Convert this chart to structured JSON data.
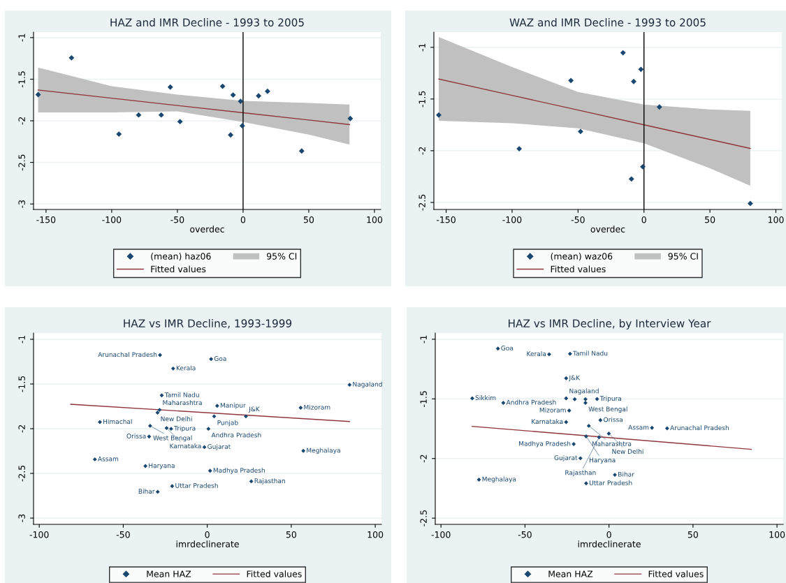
{
  "chart_data": [
    {
      "type": "scatter",
      "title": "HAZ and IMR Decline - 1993 to 2005",
      "xlabel": "overdec",
      "xlim": [
        -159.5,
        104.8
      ],
      "xticks": [
        -150,
        -100,
        -50,
        0,
        50,
        100
      ],
      "ylim": [
        -3.066,
        -0.934
      ],
      "yticks": [
        -3,
        -2.5,
        -2,
        -1.5,
        -1
      ],
      "grid": "y",
      "legend": "bottom",
      "annotations": [
        "95% CI"
      ],
      "ref_lines": [
        {
          "axis": "x",
          "value": 0,
          "color": "#000000"
        }
      ],
      "series": [
        {
          "name": "(mean) haz06",
          "marker": "diamond",
          "color": "#1a476f",
          "x": [
            -156,
            -130.6,
            -94.5,
            -79.5,
            -62.3,
            -55.4,
            -48,
            -15.6,
            -7.6,
            -1.9,
            -0.6,
            -9.5,
            11.8,
            18.6,
            44.6,
            81.6
          ],
          "values": [
            -1.685,
            -1.243,
            -2.16,
            -1.93,
            -1.93,
            -1.595,
            -2.01,
            -1.585,
            -1.69,
            -1.766,
            -2.06,
            -2.17,
            -1.7,
            -1.645,
            -2.363,
            -1.973
          ]
        },
        {
          "name": "Fitted values",
          "type": "line",
          "marker": "none",
          "color": "#90353b",
          "x": [
            -156,
            -100,
            -50,
            0,
            50,
            81
          ],
          "values": [
            -1.63,
            -1.728,
            -1.816,
            -1.903,
            -1.991,
            -2.045
          ],
          "lower": [
            -1.9,
            -1.9,
            -1.886,
            -2.015,
            -2.165,
            -2.285
          ],
          "upper": [
            -1.36,
            -1.585,
            -1.685,
            -1.76,
            -1.787,
            -1.805
          ]
        }
      ]
    },
    {
      "type": "scatter",
      "title": "WAZ and IMR Decline - 1993 to 2005",
      "xlabel": "overdec",
      "xlim": [
        -159.3,
        104.5
      ],
      "xticks": [
        -150,
        -100,
        -50,
        0,
        50,
        100
      ],
      "ylim": [
        -2.568,
        -0.853
      ],
      "yticks": [
        -2.5,
        -2,
        -1.5,
        -1
      ],
      "grid": "y",
      "legend": "bottom",
      "annotations": [
        "95% CI"
      ],
      "ref_lines": [
        {
          "axis": "x",
          "value": 0,
          "color": "#000000"
        }
      ],
      "series": [
        {
          "name": "(mean) waz06",
          "marker": "diamond",
          "color": "#1a476f",
          "x": [
            -155.6,
            -94.6,
            -55.4,
            -48.1,
            -15.9,
            -7.8,
            -2.3,
            -0.9,
            -9.5,
            11.7,
            80.6
          ],
          "values": [
            -1.655,
            -1.981,
            -1.321,
            -1.814,
            -1.053,
            -1.331,
            -1.213,
            -2.155,
            -2.273,
            -1.577,
            -2.51
          ]
        },
        {
          "name": "Fitted values",
          "type": "line",
          "marker": "none",
          "color": "#90353b",
          "x": [
            -155.6,
            -100,
            -50,
            0,
            50,
            80.6
          ],
          "values": [
            -1.307,
            -1.465,
            -1.607,
            -1.749,
            -1.891,
            -1.978
          ],
          "lower": [
            -1.71,
            -1.734,
            -1.783,
            -1.928,
            -2.17,
            -2.338
          ],
          "upper": [
            -0.901,
            -1.19,
            -1.432,
            -1.553,
            -1.6,
            -1.614
          ]
        }
      ]
    },
    {
      "type": "scatter",
      "title": "HAZ vs IMR Decline, 1993-1999",
      "xlabel": "imrdeclinerate",
      "xlim": [
        -103.4,
        103.7
      ],
      "xticks": [
        -100,
        -50,
        0,
        50,
        100
      ],
      "ylim": [
        -3.07,
        -0.93
      ],
      "yticks": [
        -3,
        -2.5,
        -2,
        -1.5,
        -1
      ],
      "grid": "y",
      "legend": "bottom",
      "series": [
        {
          "name": "Mean HAZ",
          "marker": "diamond",
          "color": "#1a476f",
          "x": [
            -28.1,
            2.3,
            -20.3,
            84.7,
            -27.1,
            5.9,
            55.6,
            -28.4,
            -29.6,
            4.1,
            23,
            -63.9,
            -34,
            -24.2,
            -21.5,
            0.7,
            -34.6,
            -1.7,
            57.2,
            -66.9,
            -36.8,
            1.7,
            26.2,
            -20.9,
            -29.5
          ],
          "values": [
            -1.176,
            -1.221,
            -1.327,
            -1.509,
            -1.627,
            -1.744,
            -1.766,
            -1.79,
            -1.82,
            -1.862,
            -1.862,
            -1.926,
            -1.968,
            -1.993,
            -2.001,
            -2.001,
            -2.088,
            -2.206,
            -2.248,
            -2.343,
            -2.418,
            -2.471,
            -2.589,
            -2.642,
            -2.706
          ]
        },
        {
          "name": "Fitted values",
          "type": "line",
          "marker": "none",
          "color": "#90353b",
          "x": [
            -81.3,
            84.7
          ],
          "values": [
            -1.727,
            -1.92
          ]
        }
      ],
      "annotations": [
        {
          "text": "Arunachal Pradesh",
          "x": -28.1,
          "y": -1.176
        },
        {
          "text": "Goa",
          "x": 2.3,
          "y": -1.221
        },
        {
          "text": "Kerala",
          "x": -20.3,
          "y": -1.327
        },
        {
          "text": "Nagaland",
          "x": 84.7,
          "y": -1.509
        },
        {
          "text": "Tamil Nadu",
          "x": -27.1,
          "y": -1.627
        },
        {
          "text": "Manipur",
          "x": 5.9,
          "y": -1.744
        },
        {
          "text": "Mizoram",
          "x": 55.6,
          "y": -1.766
        },
        {
          "text": "Maharashtra",
          "x": -28.4,
          "y": -1.79
        },
        {
          "text": "New Delhi",
          "x": -29.6,
          "y": -1.82
        },
        {
          "text": "Punjab",
          "x": 4.1,
          "y": -1.862
        },
        {
          "text": "J&K",
          "x": 23,
          "y": -1.862
        },
        {
          "text": "Himachal",
          "x": -63.9,
          "y": -1.926
        },
        {
          "text": "West Bengal",
          "x": -34,
          "y": -1.968
        },
        {
          "text": "Karnataka",
          "x": -24.2,
          "y": -1.993
        },
        {
          "text": "Tripura",
          "x": -21.5,
          "y": -2.001
        },
        {
          "text": "Andhra Pradesh",
          "x": 0.7,
          "y": -2.001
        },
        {
          "text": "Orissa",
          "x": -34.6,
          "y": -2.088
        },
        {
          "text": "Gujarat",
          "x": -1.7,
          "y": -2.206
        },
        {
          "text": "Meghalaya",
          "x": 57.2,
          "y": -2.248
        },
        {
          "text": "Assam",
          "x": -66.9,
          "y": -2.343
        },
        {
          "text": "Haryana",
          "x": -36.8,
          "y": -2.418
        },
        {
          "text": "Madhya Pradesh",
          "x": 1.7,
          "y": -2.471
        },
        {
          "text": "Rajasthan",
          "x": 26.2,
          "y": -2.589
        },
        {
          "text": "Uttar Pradesh",
          "x": -20.9,
          "y": -2.642
        },
        {
          "text": "Bihar",
          "x": -29.5,
          "y": -2.706
        }
      ]
    },
    {
      "type": "scatter",
      "title": "HAZ vs IMR Decline, by Interview Year",
      "xlabel": "imrdeclinerate",
      "xlim": [
        -103.4,
        103.7
      ],
      "xticks": [
        -100,
        -50,
        0,
        50,
        100
      ],
      "ylim": [
        -2.552,
        -0.948
      ],
      "yticks": [
        -2.5,
        -2,
        -1.5,
        -1
      ],
      "grid": "y",
      "legend": "bottom",
      "series": [
        {
          "name": "Mean HAZ",
          "marker": "diamond",
          "color": "#1a476f",
          "x": [
            -66.1,
            -35.6,
            -23.2,
            -25.5,
            -81.4,
            -62.9,
            -25.5,
            -20.4,
            -14,
            -7.1,
            -14,
            -23.7,
            -25.5,
            -5.1,
            -12,
            25.6,
            34.6,
            -0.1,
            -13.6,
            -5.9,
            -21,
            -17,
            3.5,
            -77.4,
            -13.6
          ],
          "values": [
            -1.078,
            -1.126,
            -1.122,
            -1.327,
            -1.495,
            -1.533,
            -1.495,
            -1.503,
            -1.503,
            -1.501,
            -1.533,
            -1.598,
            -1.694,
            -1.678,
            -1.726,
            -1.743,
            -1.747,
            -1.791,
            -1.814,
            -1.822,
            -1.879,
            -1.998,
            -2.137,
            -2.177,
            -2.208
          ]
        },
        {
          "name": "Fitted values",
          "type": "line",
          "marker": "none",
          "color": "#90353b",
          "x": [
            -81.4,
            84.7
          ],
          "values": [
            -1.73,
            -1.923
          ]
        }
      ],
      "annotations": [
        {
          "text": "Goa",
          "x": -66.1,
          "y": -1.078
        },
        {
          "text": "Kerala",
          "x": -35.6,
          "y": -1.126
        },
        {
          "text": "Tamil Nadu",
          "x": -23.2,
          "y": -1.122
        },
        {
          "text": "J&K",
          "x": -25.5,
          "y": -1.327
        },
        {
          "text": "Sikkim",
          "x": -81.4,
          "y": -1.495
        },
        {
          "text": "Andhra Pradesh",
          "x": -62.9,
          "y": -1.533
        },
        {
          "text": "Nagaland",
          "x": -25.5,
          "y": -1.495
        },
        {
          "text": "Tripura",
          "x": -7.1,
          "y": -1.501
        },
        {
          "text": "West Bengal",
          "x": -14,
          "y": -1.533
        },
        {
          "text": "Mizoram",
          "x": -23.7,
          "y": -1.598
        },
        {
          "text": "Karnataka",
          "x": -25.5,
          "y": -1.694
        },
        {
          "text": "Orissa",
          "x": -5.1,
          "y": -1.678
        },
        {
          "text": "Maharashtra",
          "x": -12,
          "y": -1.726
        },
        {
          "text": "Assam",
          "x": 25.6,
          "y": -1.743
        },
        {
          "text": "Arunachal Pradesh",
          "x": 34.6,
          "y": -1.747
        },
        {
          "text": "New Delhi",
          "x": -0.1,
          "y": -1.791
        },
        {
          "text": "Haryana",
          "x": -13.6,
          "y": -1.814
        },
        {
          "text": "Rajasthan",
          "x": -5.9,
          "y": -1.822
        },
        {
          "text": "Madhya Pradesh",
          "x": -21,
          "y": -1.879
        },
        {
          "text": "Gujarat",
          "x": -17,
          "y": -1.998
        },
        {
          "text": "Bihar",
          "x": 3.5,
          "y": -2.137
        },
        {
          "text": "Meghalaya",
          "x": -77.4,
          "y": -2.177
        },
        {
          "text": "Uttar Pradesh",
          "x": -13.6,
          "y": -2.208
        }
      ]
    }
  ]
}
